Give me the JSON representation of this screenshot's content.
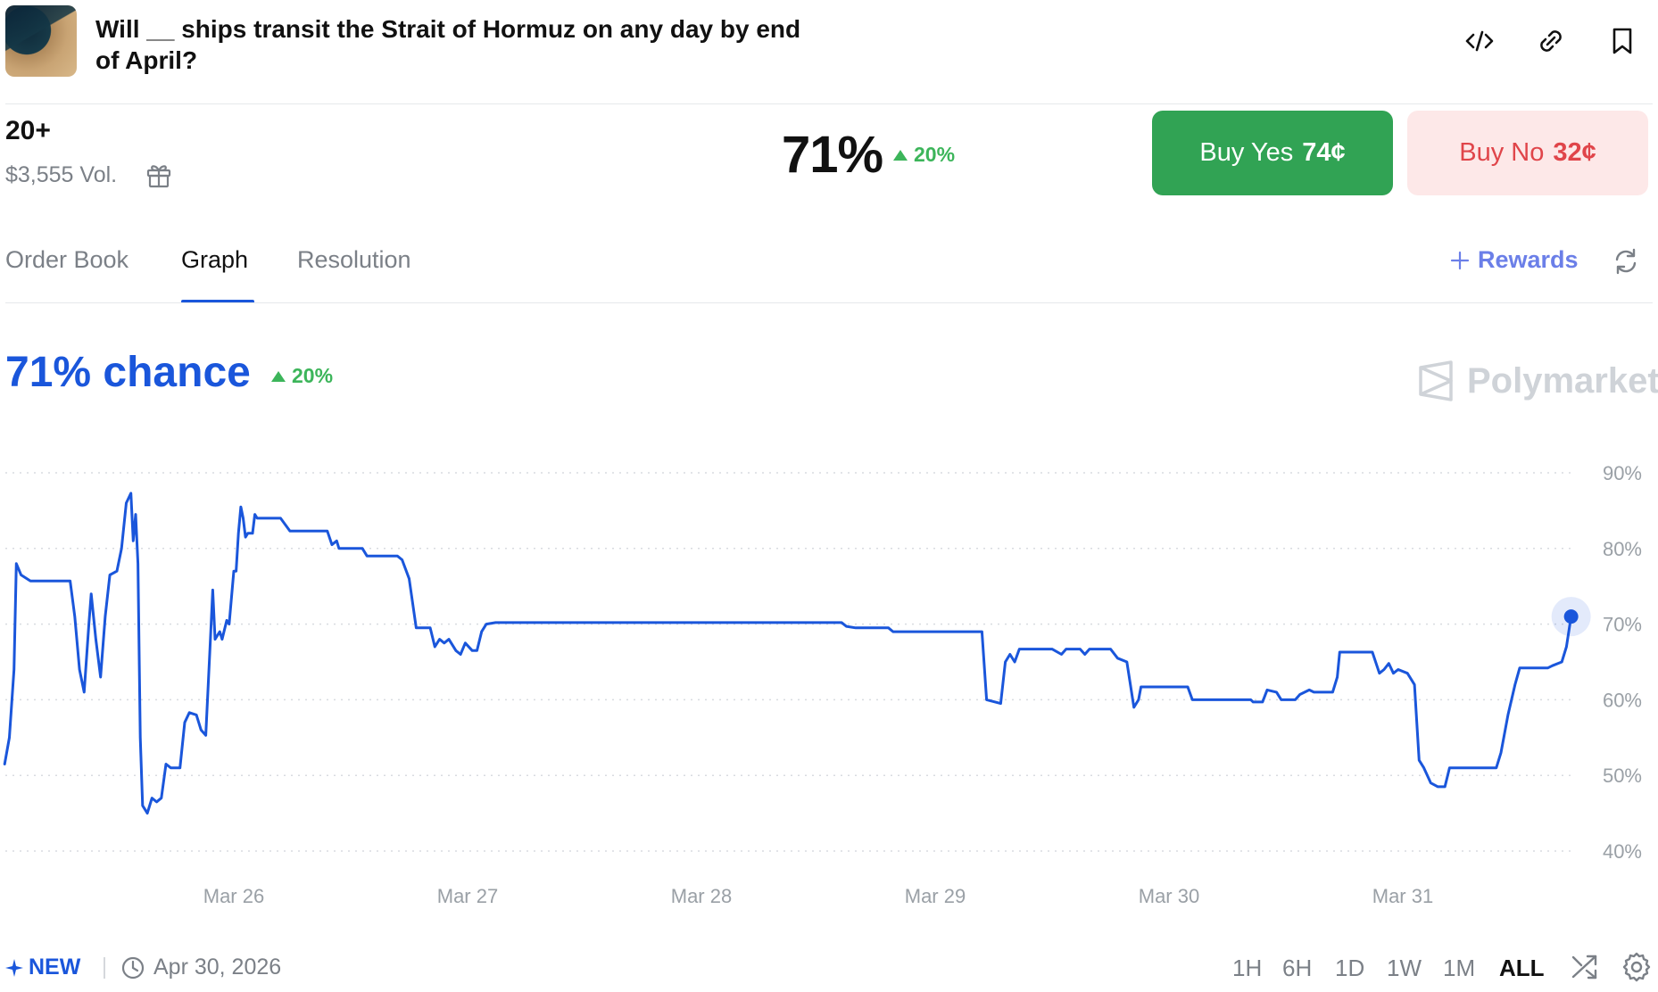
{
  "header": {
    "title": "Will __ ships transit the Strait of Hormuz on any day by end of April?",
    "icons": [
      "embed-code-icon",
      "link-icon",
      "bookmark-icon"
    ]
  },
  "market": {
    "outcome_label": "20+",
    "volume": "$3,555 Vol.",
    "price_pct": "71%",
    "price_change": "20%",
    "buy_yes_label": "Buy Yes",
    "buy_yes_price": "74¢",
    "buy_no_label": "Buy No",
    "buy_no_price": "32¢"
  },
  "tabs": [
    {
      "label": "Order Book",
      "active": false
    },
    {
      "label": "Graph",
      "active": true
    },
    {
      "label": "Resolution",
      "active": false
    }
  ],
  "rewards_label": "Rewards",
  "chance": {
    "text": "71% chance",
    "change": "20%"
  },
  "brand": "Polymarket",
  "colors": {
    "accent": "#1a56db",
    "up": "#3cb55a",
    "buy_yes_bg": "#31a354",
    "buy_no_bg": "#fde8e8",
    "buy_no_text": "#e0454a"
  },
  "chart_data": {
    "type": "line",
    "title": "",
    "xlabel": "",
    "ylabel": "",
    "x_ticks": [
      "Mar 26",
      "Mar 27",
      "Mar 28",
      "Mar 29",
      "Mar 30",
      "Mar 31"
    ],
    "y_ticks": [
      "90%",
      "80%",
      "70%",
      "60%",
      "50%",
      "40%"
    ],
    "ylim": [
      40,
      90
    ],
    "grid": "horizontal dotted",
    "series": [
      {
        "color": "#1a56db",
        "points": [
          [
            -0.98,
            51.5
          ],
          [
            -0.96,
            55
          ],
          [
            -0.94,
            64
          ],
          [
            -0.93,
            78
          ],
          [
            -0.91,
            76.5
          ],
          [
            -0.87,
            75.7
          ],
          [
            -0.7,
            75.7
          ],
          [
            -0.68,
            71
          ],
          [
            -0.66,
            64
          ],
          [
            -0.64,
            61
          ],
          [
            -0.62,
            70
          ],
          [
            -0.61,
            74
          ],
          [
            -0.59,
            68
          ],
          [
            -0.57,
            63
          ],
          [
            -0.55,
            71
          ],
          [
            -0.53,
            76.5
          ],
          [
            -0.5,
            77
          ],
          [
            -0.48,
            80
          ],
          [
            -0.46,
            86
          ],
          [
            -0.44,
            87.3
          ],
          [
            -0.43,
            81
          ],
          [
            -0.42,
            84.5
          ],
          [
            -0.41,
            78
          ],
          [
            -0.4,
            55
          ],
          [
            -0.39,
            46
          ],
          [
            -0.37,
            45
          ],
          [
            -0.35,
            47
          ],
          [
            -0.33,
            46.5
          ],
          [
            -0.31,
            47
          ],
          [
            -0.29,
            51.5
          ],
          [
            -0.27,
            51
          ],
          [
            -0.23,
            51
          ],
          [
            -0.21,
            57
          ],
          [
            -0.19,
            58.3
          ],
          [
            -0.16,
            58
          ],
          [
            -0.14,
            56
          ],
          [
            -0.12,
            55.3
          ],
          [
            -0.1,
            68
          ],
          [
            -0.09,
            74.5
          ],
          [
            -0.08,
            68
          ],
          [
            -0.06,
            69
          ],
          [
            -0.05,
            68
          ],
          [
            -0.03,
            70.5
          ],
          [
            -0.02,
            70
          ],
          [
            0.0,
            77
          ],
          [
            0.01,
            77
          ],
          [
            0.02,
            82
          ],
          [
            0.03,
            85.5
          ],
          [
            0.04,
            84
          ],
          [
            0.05,
            81.5
          ],
          [
            0.06,
            82
          ],
          [
            0.08,
            82
          ],
          [
            0.09,
            84.5
          ],
          [
            0.1,
            84
          ],
          [
            0.2,
            84
          ],
          [
            0.24,
            82.3
          ],
          [
            0.4,
            82.3
          ],
          [
            0.42,
            80.5
          ],
          [
            0.44,
            81
          ],
          [
            0.45,
            80
          ],
          [
            0.55,
            80
          ],
          [
            0.57,
            79
          ],
          [
            0.66,
            79
          ],
          [
            0.7,
            79
          ],
          [
            0.72,
            78.5
          ],
          [
            0.75,
            76
          ],
          [
            0.78,
            69.5
          ],
          [
            0.84,
            69.5
          ],
          [
            0.86,
            67
          ],
          [
            0.88,
            68
          ],
          [
            0.9,
            67.5
          ],
          [
            0.92,
            68
          ],
          [
            0.95,
            66.5
          ],
          [
            0.97,
            66
          ],
          [
            0.99,
            67.5
          ],
          [
            1.02,
            66.5
          ],
          [
            1.04,
            66.5
          ],
          [
            1.06,
            69
          ],
          [
            1.08,
            70
          ],
          [
            1.12,
            70.2
          ],
          [
            2.6,
            70.2
          ],
          [
            2.62,
            69.7
          ],
          [
            2.66,
            69.5
          ],
          [
            2.8,
            69.5
          ],
          [
            2.82,
            69
          ],
          [
            3.2,
            69
          ],
          [
            3.22,
            60
          ],
          [
            3.28,
            59.5
          ],
          [
            3.3,
            65
          ],
          [
            3.32,
            66
          ],
          [
            3.34,
            65
          ],
          [
            3.36,
            66.7
          ],
          [
            3.5,
            66.7
          ],
          [
            3.54,
            66
          ],
          [
            3.56,
            66.7
          ],
          [
            3.62,
            66.7
          ],
          [
            3.64,
            66
          ],
          [
            3.66,
            66.7
          ],
          [
            3.75,
            66.7
          ],
          [
            3.78,
            65.5
          ],
          [
            3.82,
            65
          ],
          [
            3.85,
            59
          ],
          [
            3.87,
            60
          ],
          [
            3.88,
            61.7
          ],
          [
            4.08,
            61.7
          ],
          [
            4.1,
            60
          ],
          [
            4.35,
            60
          ],
          [
            4.36,
            59.7
          ],
          [
            4.4,
            59.7
          ],
          [
            4.42,
            61.3
          ],
          [
            4.46,
            61
          ],
          [
            4.48,
            60
          ],
          [
            4.54,
            60
          ],
          [
            4.56,
            60.7
          ],
          [
            4.6,
            61.3
          ],
          [
            4.62,
            61
          ],
          [
            4.7,
            61
          ],
          [
            4.72,
            63
          ],
          [
            4.73,
            66.3
          ],
          [
            4.87,
            66.3
          ],
          [
            4.9,
            63.5
          ],
          [
            4.92,
            64
          ],
          [
            4.94,
            64.8
          ],
          [
            4.96,
            63.5
          ],
          [
            4.98,
            64
          ],
          [
            5.02,
            63.5
          ],
          [
            5.05,
            62
          ],
          [
            5.06,
            57
          ],
          [
            5.07,
            52
          ],
          [
            5.09,
            51
          ],
          [
            5.12,
            49
          ],
          [
            5.15,
            48.5
          ],
          [
            5.18,
            48.5
          ],
          [
            5.2,
            51
          ],
          [
            5.4,
            51
          ],
          [
            5.42,
            53
          ],
          [
            5.45,
            58
          ],
          [
            5.48,
            62
          ],
          [
            5.5,
            64.2
          ],
          [
            5.62,
            64.2
          ],
          [
            5.64,
            64.5
          ],
          [
            5.68,
            65
          ],
          [
            5.7,
            67
          ],
          [
            5.72,
            71
          ]
        ]
      }
    ]
  },
  "footer": {
    "new_label": "NEW",
    "end_date": "Apr 30, 2026",
    "ranges": [
      {
        "label": "1H",
        "active": false
      },
      {
        "label": "6H",
        "active": false
      },
      {
        "label": "1D",
        "active": false
      },
      {
        "label": "1W",
        "active": false
      },
      {
        "label": "1M",
        "active": false
      },
      {
        "label": "ALL",
        "active": true
      }
    ]
  }
}
